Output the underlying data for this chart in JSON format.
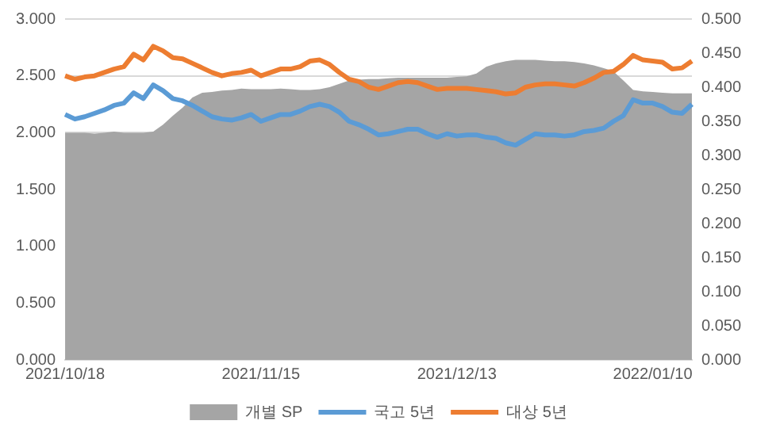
{
  "chart_data": {
    "type": "line",
    "categories": [
      "2021/10/18",
      null,
      null,
      null,
      null,
      null,
      null,
      null,
      null,
      null,
      null,
      null,
      null,
      null,
      null,
      null,
      null,
      null,
      null,
      null,
      "2021/11/15",
      null,
      null,
      null,
      null,
      null,
      null,
      null,
      null,
      null,
      null,
      null,
      null,
      null,
      null,
      null,
      null,
      null,
      null,
      null,
      "2021/12/13",
      null,
      null,
      null,
      null,
      null,
      null,
      null,
      null,
      null,
      null,
      null,
      null,
      null,
      null,
      null,
      null,
      null,
      null,
      null,
      "2022/01/10",
      null,
      null,
      null,
      null
    ],
    "series": [
      {
        "name": "개별 SP",
        "type": "area",
        "axis": "y2",
        "color": "#a5a5a5",
        "values": [
          0.333,
          0.333,
          0.333,
          0.332,
          0.333,
          0.335,
          0.333,
          0.333,
          0.333,
          0.335,
          0.345,
          0.358,
          0.37,
          0.385,
          0.392,
          0.393,
          0.395,
          0.396,
          0.398,
          0.397,
          0.397,
          0.397,
          0.398,
          0.397,
          0.396,
          0.396,
          0.397,
          0.4,
          0.405,
          0.41,
          0.411,
          0.412,
          0.412,
          0.413,
          0.414,
          0.414,
          0.414,
          0.414,
          0.414,
          0.414,
          0.415,
          0.416,
          0.42,
          0.43,
          0.435,
          0.438,
          0.44,
          0.44,
          0.44,
          0.439,
          0.438,
          0.438,
          0.437,
          0.435,
          0.432,
          0.428,
          0.423,
          0.41,
          0.396,
          0.394,
          0.393,
          0.392,
          0.391,
          0.391,
          0.391
        ]
      },
      {
        "name": "국고 5년",
        "type": "line",
        "color": "#5b9bd5",
        "values": [
          2.16,
          2.12,
          2.14,
          2.17,
          2.2,
          2.24,
          2.26,
          2.35,
          2.3,
          2.42,
          2.37,
          2.3,
          2.28,
          2.24,
          2.19,
          2.14,
          2.12,
          2.11,
          2.13,
          2.16,
          2.1,
          2.13,
          2.16,
          2.16,
          2.19,
          2.23,
          2.25,
          2.23,
          2.18,
          2.1,
          2.07,
          2.03,
          1.98,
          1.99,
          2.01,
          2.03,
          2.03,
          1.99,
          1.96,
          1.99,
          1.97,
          1.98,
          1.98,
          1.96,
          1.95,
          1.91,
          1.89,
          1.94,
          1.99,
          1.98,
          1.98,
          1.97,
          1.98,
          2.01,
          2.02,
          2.04,
          2.1,
          2.15,
          2.29,
          2.26,
          2.26,
          2.23,
          2.18,
          2.17,
          2.25
        ]
      },
      {
        "name": "대상 5년",
        "type": "line",
        "color": "#ed7d31",
        "values": [
          2.5,
          2.47,
          2.49,
          2.5,
          2.53,
          2.56,
          2.58,
          2.69,
          2.64,
          2.76,
          2.72,
          2.66,
          2.65,
          2.61,
          2.57,
          2.53,
          2.5,
          2.52,
          2.53,
          2.55,
          2.5,
          2.53,
          2.56,
          2.56,
          2.58,
          2.63,
          2.64,
          2.6,
          2.53,
          2.47,
          2.45,
          2.4,
          2.38,
          2.41,
          2.44,
          2.45,
          2.44,
          2.41,
          2.38,
          2.39,
          2.39,
          2.39,
          2.38,
          2.37,
          2.36,
          2.34,
          2.35,
          2.4,
          2.42,
          2.43,
          2.43,
          2.42,
          2.41,
          2.44,
          2.48,
          2.53,
          2.54,
          2.6,
          2.68,
          2.64,
          2.63,
          2.62,
          2.56,
          2.57,
          2.63
        ]
      }
    ],
    "ylim": [
      0,
      3
    ],
    "yticks": [
      {
        "value": 0,
        "label": "0.000"
      },
      {
        "value": 0.5,
        "label": "0.500"
      },
      {
        "value": 1,
        "label": "1.000"
      },
      {
        "value": 1.5,
        "label": "1.500"
      },
      {
        "value": 2,
        "label": "2.000"
      },
      {
        "value": 2.5,
        "label": "2.500"
      },
      {
        "value": 3,
        "label": "3.000"
      }
    ],
    "y2lim": [
      0,
      0.5
    ],
    "y2ticks": [
      {
        "value": 0,
        "label": "0.000"
      },
      {
        "value": 0.05,
        "label": "0.050"
      },
      {
        "value": 0.1,
        "label": "0.100"
      },
      {
        "value": 0.15,
        "label": "0.150"
      },
      {
        "value": 0.2,
        "label": "0.200"
      },
      {
        "value": 0.25,
        "label": "0.250"
      },
      {
        "value": 0.3,
        "label": "0.300"
      },
      {
        "value": 0.35,
        "label": "0.350"
      },
      {
        "value": 0.4,
        "label": "0.400"
      },
      {
        "value": 0.45,
        "label": "0.450"
      },
      {
        "value": 0.5,
        "label": "0.500"
      }
    ],
    "grid": "y",
    "legend": "bottom"
  }
}
